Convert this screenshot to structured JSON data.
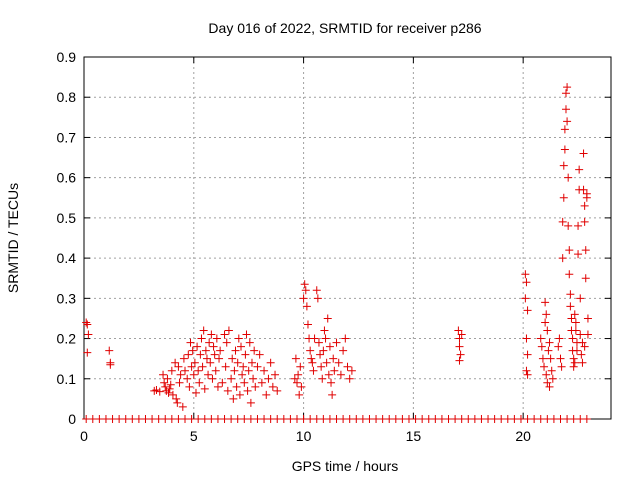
{
  "chart_data": {
    "type": "scatter",
    "title": "Day 016 of 2022, SRMTID for receiver p286",
    "xlabel": "GPS time / hours",
    "ylabel": "SRMTID / TECUs",
    "xlim": [
      0,
      24
    ],
    "ylim": [
      0,
      0.9
    ],
    "xticks": [
      0,
      5,
      10,
      15,
      20
    ],
    "yticks": [
      0,
      0.1,
      0.2,
      0.3,
      0.4,
      0.5,
      0.6,
      0.7,
      0.8,
      0.9
    ],
    "grid": true,
    "marker": "+",
    "color": "#e00000",
    "series": [
      {
        "name": "SRMTID",
        "points": [
          [
            0.1,
            0.24
          ],
          [
            0.15,
            0.235
          ],
          [
            0.2,
            0.21
          ],
          [
            0.15,
            0.165
          ],
          [
            1.15,
            0.17
          ],
          [
            1.2,
            0.14
          ],
          [
            1.2,
            0.135
          ],
          [
            3.2,
            0.07
          ],
          [
            3.3,
            0.072
          ],
          [
            3.45,
            0.068
          ],
          [
            3.6,
            0.11
          ],
          [
            3.65,
            0.09
          ],
          [
            3.7,
            0.08
          ],
          [
            3.75,
            0.07
          ],
          [
            3.8,
            0.1
          ],
          [
            3.85,
            0.065
          ],
          [
            3.9,
            0.075
          ],
          [
            3.95,
            0.085
          ],
          [
            4.0,
            0.12
          ],
          [
            4.05,
            0.06
          ],
          [
            4.15,
            0.14
          ],
          [
            4.2,
            0.05
          ],
          [
            4.25,
            0.04
          ],
          [
            4.3,
            0.13
          ],
          [
            4.35,
            0.09
          ],
          [
            4.4,
            0.11
          ],
          [
            4.5,
            0.03
          ],
          [
            4.55,
            0.15
          ],
          [
            4.6,
            0.12
          ],
          [
            4.7,
            0.1
          ],
          [
            4.75,
            0.16
          ],
          [
            4.8,
            0.08
          ],
          [
            4.85,
            0.19
          ],
          [
            4.9,
            0.13
          ],
          [
            4.95,
            0.17
          ],
          [
            5.0,
            0.11
          ],
          [
            5.05,
            0.14
          ],
          [
            5.1,
            0.065
          ],
          [
            5.15,
            0.18
          ],
          [
            5.2,
            0.12
          ],
          [
            5.25,
            0.09
          ],
          [
            5.3,
            0.16
          ],
          [
            5.35,
            0.2
          ],
          [
            5.4,
            0.13
          ],
          [
            5.45,
            0.22
          ],
          [
            5.5,
            0.075
          ],
          [
            5.55,
            0.17
          ],
          [
            5.6,
            0.15
          ],
          [
            5.65,
            0.11
          ],
          [
            5.7,
            0.19
          ],
          [
            5.75,
            0.14
          ],
          [
            5.8,
            0.21
          ],
          [
            5.85,
            0.1
          ],
          [
            5.9,
            0.18
          ],
          [
            5.95,
            0.16
          ],
          [
            6.0,
            0.12
          ],
          [
            6.05,
            0.2
          ],
          [
            6.1,
            0.08
          ],
          [
            6.15,
            0.15
          ],
          [
            6.2,
            0.17
          ],
          [
            6.3,
            0.09
          ],
          [
            6.4,
            0.21
          ],
          [
            6.45,
            0.13
          ],
          [
            6.5,
            0.19
          ],
          [
            6.55,
            0.07
          ],
          [
            6.6,
            0.22
          ],
          [
            6.7,
            0.1
          ],
          [
            6.75,
            0.15
          ],
          [
            6.8,
            0.05
          ],
          [
            6.85,
            0.12
          ],
          [
            6.9,
            0.17
          ],
          [
            6.95,
            0.08
          ],
          [
            7.0,
            0.14
          ],
          [
            7.05,
            0.2
          ],
          [
            7.1,
            0.06
          ],
          [
            7.15,
            0.18
          ],
          [
            7.2,
            0.11
          ],
          [
            7.25,
            0.13
          ],
          [
            7.3,
            0.09
          ],
          [
            7.35,
            0.16
          ],
          [
            7.4,
            0.21
          ],
          [
            7.45,
            0.07
          ],
          [
            7.5,
            0.12
          ],
          [
            7.55,
            0.19
          ],
          [
            7.6,
            0.04
          ],
          [
            7.65,
            0.14
          ],
          [
            7.7,
            0.1
          ],
          [
            7.75,
            0.17
          ],
          [
            7.8,
            0.08
          ],
          [
            7.9,
            0.13
          ],
          [
            8.0,
            0.16
          ],
          [
            8.1,
            0.09
          ],
          [
            8.2,
            0.12
          ],
          [
            8.3,
            0.06
          ],
          [
            8.4,
            0.1
          ],
          [
            8.5,
            0.14
          ],
          [
            8.6,
            0.08
          ],
          [
            8.7,
            0.11
          ],
          [
            8.8,
            0.07
          ],
          [
            9.6,
            0.1
          ],
          [
            9.65,
            0.15
          ],
          [
            9.7,
            0.09
          ],
          [
            9.75,
            0.11
          ],
          [
            9.8,
            0.06
          ],
          [
            9.85,
            0.13
          ],
          [
            9.9,
            0.08
          ],
          [
            10.0,
            0.3
          ],
          [
            10.05,
            0.335
          ],
          [
            10.1,
            0.32
          ],
          [
            10.15,
            0.28
          ],
          [
            10.2,
            0.235
          ],
          [
            10.25,
            0.2
          ],
          [
            10.3,
            0.17
          ],
          [
            10.35,
            0.15
          ],
          [
            10.4,
            0.14
          ],
          [
            10.45,
            0.12
          ],
          [
            10.5,
            0.2
          ],
          [
            10.6,
            0.32
          ],
          [
            10.65,
            0.3
          ],
          [
            10.7,
            0.19
          ],
          [
            10.75,
            0.16
          ],
          [
            10.8,
            0.13
          ],
          [
            10.85,
            0.1
          ],
          [
            10.9,
            0.17
          ],
          [
            10.95,
            0.22
          ],
          [
            11.0,
            0.2
          ],
          [
            11.05,
            0.14
          ],
          [
            11.1,
            0.25
          ],
          [
            11.15,
            0.11
          ],
          [
            11.2,
            0.18
          ],
          [
            11.25,
            0.09
          ],
          [
            11.3,
            0.06
          ],
          [
            11.35,
            0.15
          ],
          [
            11.4,
            0.12
          ],
          [
            11.5,
            0.19
          ],
          [
            11.6,
            0.14
          ],
          [
            11.7,
            0.11
          ],
          [
            11.8,
            0.17
          ],
          [
            11.9,
            0.2
          ],
          [
            12.0,
            0.13
          ],
          [
            12.1,
            0.1
          ],
          [
            12.2,
            0.12
          ],
          [
            17.05,
            0.22
          ],
          [
            17.1,
            0.2
          ],
          [
            17.1,
            0.18
          ],
          [
            17.15,
            0.16
          ],
          [
            17.1,
            0.145
          ],
          [
            17.2,
            0.21
          ],
          [
            20.1,
            0.36
          ],
          [
            20.15,
            0.34
          ],
          [
            20.1,
            0.3
          ],
          [
            20.2,
            0.27
          ],
          [
            20.15,
            0.2
          ],
          [
            20.2,
            0.16
          ],
          [
            20.15,
            0.12
          ],
          [
            20.2,
            0.11
          ],
          [
            20.8,
            0.2
          ],
          [
            20.85,
            0.18
          ],
          [
            20.9,
            0.15
          ],
          [
            20.95,
            0.13
          ],
          [
            21.0,
            0.29
          ],
          [
            21.05,
            0.26
          ],
          [
            21.0,
            0.24
          ],
          [
            21.1,
            0.22
          ],
          [
            21.05,
            0.11
          ],
          [
            21.1,
            0.09
          ],
          [
            21.15,
            0.17
          ],
          [
            21.2,
            0.19
          ],
          [
            21.25,
            0.15
          ],
          [
            21.3,
            0.12
          ],
          [
            21.35,
            0.1
          ],
          [
            21.2,
            0.08
          ],
          [
            21.6,
            0.18
          ],
          [
            21.65,
            0.2
          ],
          [
            21.7,
            0.15
          ],
          [
            21.75,
            0.13
          ],
          [
            21.8,
            0.4
          ],
          [
            21.8,
            0.49
          ],
          [
            21.85,
            0.55
          ],
          [
            21.85,
            0.63
          ],
          [
            21.9,
            0.67
          ],
          [
            21.9,
            0.72
          ],
          [
            21.95,
            0.77
          ],
          [
            21.95,
            0.81
          ],
          [
            22.0,
            0.825
          ],
          [
            22.0,
            0.74
          ],
          [
            22.05,
            0.6
          ],
          [
            22.05,
            0.48
          ],
          [
            22.1,
            0.42
          ],
          [
            22.1,
            0.36
          ],
          [
            22.15,
            0.31
          ],
          [
            22.15,
            0.28
          ],
          [
            22.2,
            0.25
          ],
          [
            22.2,
            0.22
          ],
          [
            22.25,
            0.2
          ],
          [
            22.25,
            0.17
          ],
          [
            22.3,
            0.15
          ],
          [
            22.3,
            0.13
          ],
          [
            22.35,
            0.14
          ],
          [
            22.35,
            0.26
          ],
          [
            22.4,
            0.24
          ],
          [
            22.4,
            0.22
          ],
          [
            22.45,
            0.19
          ],
          [
            22.45,
            0.17
          ],
          [
            22.5,
            0.41
          ],
          [
            22.5,
            0.48
          ],
          [
            22.55,
            0.57
          ],
          [
            22.55,
            0.62
          ],
          [
            22.6,
            0.3
          ],
          [
            22.6,
            0.21
          ],
          [
            22.65,
            0.16
          ],
          [
            22.7,
            0.19
          ],
          [
            22.75,
            0.66
          ],
          [
            22.75,
            0.57
          ],
          [
            22.8,
            0.53
          ],
          [
            22.8,
            0.49
          ],
          [
            22.85,
            0.42
          ],
          [
            22.85,
            0.35
          ],
          [
            22.9,
            0.56
          ],
          [
            22.9,
            0.55
          ],
          [
            22.95,
            0.21
          ],
          [
            22.95,
            0.25
          ],
          [
            22.7,
            0.14
          ],
          [
            22.8,
            0.18
          ],
          [
            0.1,
            0
          ],
          [
            0.4,
            0
          ],
          [
            0.7,
            0
          ],
          [
            1.0,
            0
          ],
          [
            1.3,
            0
          ],
          [
            1.6,
            0
          ],
          [
            1.9,
            0
          ],
          [
            2.2,
            0
          ],
          [
            2.5,
            0
          ],
          [
            2.8,
            0
          ],
          [
            3.1,
            0
          ],
          [
            3.4,
            0
          ],
          [
            3.7,
            0
          ],
          [
            4.0,
            0
          ],
          [
            4.3,
            0
          ],
          [
            4.6,
            0
          ],
          [
            4.9,
            0
          ],
          [
            5.2,
            0
          ],
          [
            5.5,
            0
          ],
          [
            5.8,
            0
          ],
          [
            6.1,
            0
          ],
          [
            6.4,
            0
          ],
          [
            6.7,
            0
          ],
          [
            7.0,
            0
          ],
          [
            7.3,
            0
          ],
          [
            7.6,
            0
          ],
          [
            7.9,
            0
          ],
          [
            8.2,
            0
          ],
          [
            8.5,
            0
          ],
          [
            8.8,
            0
          ],
          [
            9.1,
            0
          ],
          [
            9.4,
            0
          ],
          [
            9.7,
            0
          ],
          [
            10.0,
            0
          ],
          [
            10.3,
            0
          ],
          [
            10.6,
            0
          ],
          [
            10.9,
            0
          ],
          [
            11.2,
            0
          ],
          [
            11.5,
            0
          ],
          [
            11.8,
            0
          ],
          [
            12.1,
            0
          ],
          [
            12.4,
            0
          ],
          [
            12.7,
            0
          ],
          [
            13.0,
            0
          ],
          [
            13.3,
            0
          ],
          [
            13.6,
            0
          ],
          [
            13.9,
            0
          ],
          [
            14.2,
            0
          ],
          [
            14.5,
            0
          ],
          [
            14.8,
            0
          ],
          [
            15.1,
            0
          ],
          [
            15.4,
            0
          ],
          [
            15.7,
            0
          ],
          [
            16.0,
            0
          ],
          [
            16.3,
            0
          ],
          [
            16.6,
            0
          ],
          [
            16.9,
            0
          ],
          [
            17.2,
            0
          ],
          [
            17.5,
            0
          ],
          [
            17.8,
            0
          ],
          [
            18.1,
            0
          ],
          [
            18.4,
            0
          ],
          [
            18.7,
            0
          ],
          [
            19.0,
            0
          ],
          [
            19.3,
            0
          ],
          [
            19.6,
            0
          ],
          [
            19.9,
            0
          ],
          [
            20.2,
            0
          ],
          [
            20.5,
            0
          ],
          [
            20.8,
            0
          ],
          [
            21.1,
            0
          ],
          [
            21.4,
            0
          ],
          [
            21.7,
            0
          ],
          [
            22.0,
            0
          ],
          [
            22.3,
            0
          ],
          [
            22.6,
            0
          ],
          [
            22.9,
            0
          ]
        ]
      }
    ]
  }
}
